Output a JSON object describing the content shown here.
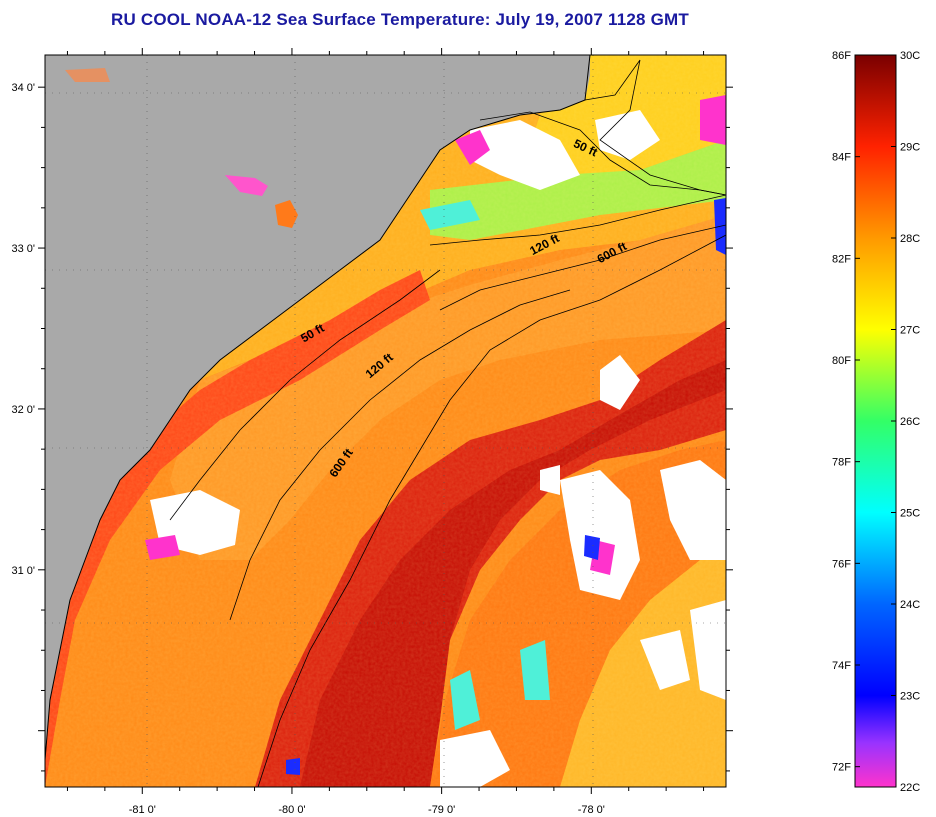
{
  "title": "RU COOL  NOAA-12  Sea Surface Temperature:  July 19, 2007 1128 GMT",
  "map": {
    "lon_range": [
      -81.65,
      -77.1
    ],
    "lat_range": [
      29.65,
      34.2
    ],
    "lon_ticks": [
      {
        "value": -81,
        "label": "-81 0'"
      },
      {
        "value": -80,
        "label": "-80 0'"
      },
      {
        "value": -79,
        "label": "-79 0'"
      },
      {
        "value": -78,
        "label": "-78 0'"
      }
    ],
    "lat_ticks": [
      {
        "value": 34,
        "label": "34 0'"
      },
      {
        "value": 33,
        "label": "33 0'"
      },
      {
        "value": 32,
        "label": "32 0'"
      },
      {
        "value": 31,
        "label": "31 0'"
      }
    ],
    "depth_labels": [
      {
        "text": "50 ft",
        "lon": -78.05,
        "lat": 33.6,
        "rotation": 25
      },
      {
        "text": "120 ft",
        "lon": -78.3,
        "lat": 33.0,
        "rotation": -28
      },
      {
        "text": "600 ft",
        "lon": -77.85,
        "lat": 32.95,
        "rotation": -28
      },
      {
        "text": "50 ft",
        "lon": -79.85,
        "lat": 32.45,
        "rotation": -30
      },
      {
        "text": "120 ft",
        "lon": -79.4,
        "lat": 32.25,
        "rotation": -40
      },
      {
        "text": "600 ft",
        "lon": -79.65,
        "lat": 31.65,
        "rotation": -55
      }
    ],
    "colors": {
      "land": "#a9a9a9",
      "cloud": "#ffffff",
      "warm_core": "#cc1010",
      "shelf": "#ff7a10"
    }
  },
  "colorbar": {
    "fahrenheit_labels": [
      "86F",
      "84F",
      "82F",
      "80F",
      "78F",
      "76F",
      "74F",
      "72F"
    ],
    "celsius_labels": [
      "30C",
      "29C",
      "28C",
      "27C",
      "26C",
      "25C",
      "24C",
      "23C",
      "22C"
    ],
    "range_c": [
      22,
      30
    ],
    "stops": [
      {
        "c": 22,
        "color": "#ff33cc"
      },
      {
        "c": 22.5,
        "color": "#9933ff"
      },
      {
        "c": 23,
        "color": "#0000ff"
      },
      {
        "c": 24,
        "color": "#0066ff"
      },
      {
        "c": 25,
        "color": "#00ffff"
      },
      {
        "c": 26,
        "color": "#33ff66"
      },
      {
        "c": 27,
        "color": "#ffff00"
      },
      {
        "c": 28,
        "color": "#ff9900"
      },
      {
        "c": 29,
        "color": "#ff2200"
      },
      {
        "c": 30,
        "color": "#7a0000"
      }
    ]
  }
}
